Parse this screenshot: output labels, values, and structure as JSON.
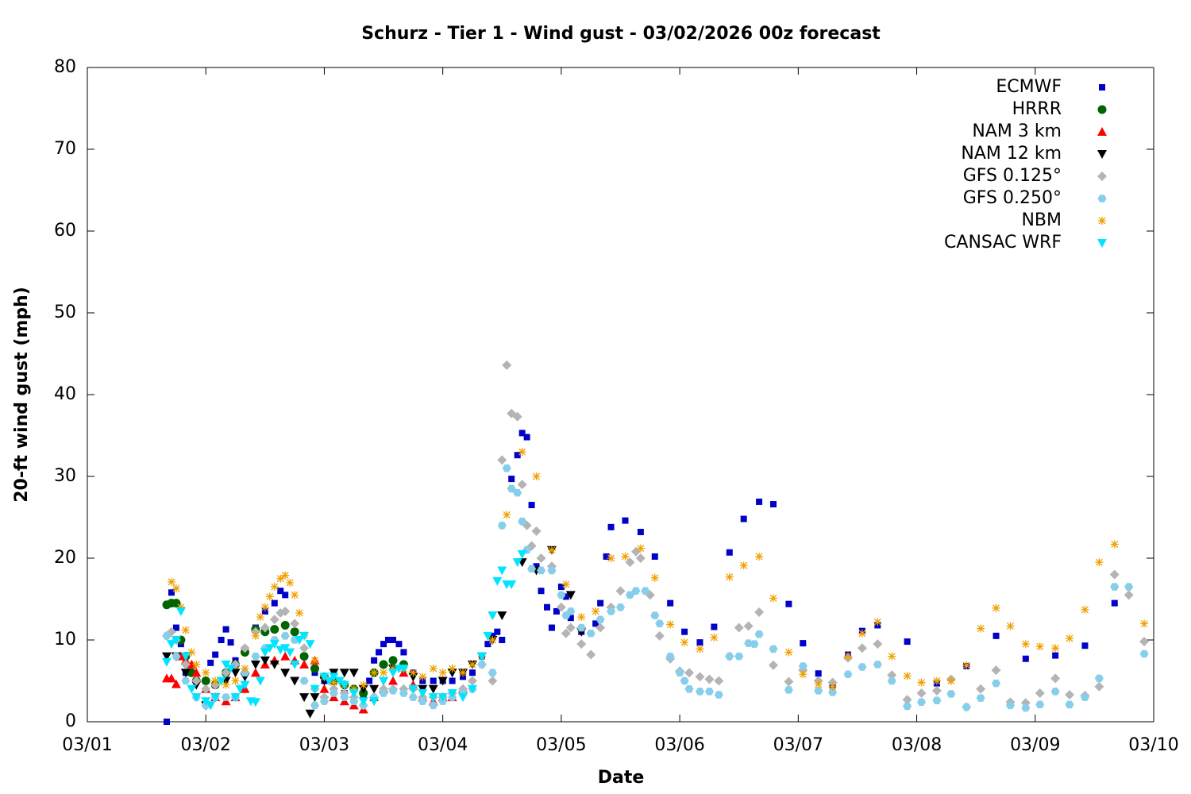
{
  "chart_data": {
    "type": "scatter",
    "title": "Schurz - Tier 1 - Wind gust - 03/02/2026 00z forecast",
    "xlabel": "Date",
    "ylabel": "20-ft wind gust (mph)",
    "xlim": [
      1,
      10
    ],
    "ylim": [
      0,
      80
    ],
    "xticks": [
      {
        "value": 1,
        "label": "03/01"
      },
      {
        "value": 2,
        "label": "03/02"
      },
      {
        "value": 3,
        "label": "03/03"
      },
      {
        "value": 4,
        "label": "03/04"
      },
      {
        "value": 5,
        "label": "03/05"
      },
      {
        "value": 6,
        "label": "03/06"
      },
      {
        "value": 7,
        "label": "03/07"
      },
      {
        "value": 8,
        "label": "03/08"
      },
      {
        "value": 9,
        "label": "03/09"
      },
      {
        "value": 10,
        "label": "03/10"
      }
    ],
    "yticks": [
      0,
      10,
      20,
      30,
      40,
      50,
      60,
      70,
      80
    ],
    "legend": "top-right",
    "series": [
      {
        "name": "ECMWF",
        "color": "#0000c8",
        "marker": "square",
        "x": [
          1.67,
          1.71,
          1.75,
          1.79,
          1.83,
          1.92,
          2.04,
          2.08,
          2.13,
          2.17,
          2.21,
          2.25,
          2.33,
          2.42,
          2.5,
          2.58,
          2.63,
          2.67,
          2.75,
          2.83,
          2.92,
          3.0,
          3.17,
          3.33,
          3.38,
          3.42,
          3.46,
          3.5,
          3.54,
          3.58,
          3.63,
          3.67,
          3.75,
          3.83,
          3.92,
          4.0,
          4.08,
          4.17,
          4.25,
          4.33,
          4.38,
          4.42,
          4.46,
          4.5,
          4.58,
          4.63,
          4.67,
          4.71,
          4.75,
          4.79,
          4.83,
          4.88,
          4.92,
          4.96,
          5.0,
          5.04,
          5.08,
          5.17,
          5.29,
          5.33,
          5.38,
          5.42,
          5.54,
          5.67,
          5.79,
          5.92,
          6.04,
          6.17,
          6.29,
          6.42,
          6.54,
          6.67,
          6.79,
          6.92,
          7.04,
          7.17,
          7.29,
          7.42,
          7.54,
          7.67,
          7.92,
          8.17,
          8.42,
          8.67,
          8.92,
          9.17,
          9.42,
          9.67
        ],
        "values": [
          0,
          15.8,
          11.5,
          9.5,
          6,
          5,
          7.2,
          8.2,
          10,
          11.3,
          9.7,
          7.5,
          8.5,
          11.5,
          13.5,
          14.5,
          16,
          15.5,
          11,
          8,
          6,
          5,
          3.5,
          3,
          5,
          7.5,
          8.5,
          9.5,
          10,
          10,
          9.5,
          8.5,
          6,
          5,
          5,
          5,
          5,
          5.5,
          6,
          8,
          9.5,
          10.5,
          11,
          10,
          29.7,
          32.6,
          35.3,
          34.8,
          26.5,
          19,
          16,
          14,
          11.5,
          13.5,
          16.5,
          15.3,
          12.7,
          11,
          12,
          14.5,
          20.2,
          23.8,
          24.6,
          23.2,
          20.2,
          14.5,
          11,
          9.7,
          11.6,
          20.7,
          24.8,
          26.9,
          26.6,
          14.4,
          9.6,
          5.9,
          4.5,
          8.2,
          11.1,
          11.8,
          9.8,
          4.7,
          6.8,
          10.5,
          7.7,
          8.1,
          9.3,
          14.5
        ]
      },
      {
        "name": "HRRR",
        "color": "#006400",
        "marker": "circle",
        "x": [
          1.67,
          1.71,
          1.75,
          1.79,
          1.83,
          1.88,
          1.92,
          2.0,
          2.08,
          2.17,
          2.25,
          2.33,
          2.42,
          2.5,
          2.58,
          2.67,
          2.75,
          2.83,
          2.92,
          3.0,
          3.08,
          3.17,
          3.25,
          3.33,
          3.42,
          3.5,
          3.58,
          3.67
        ],
        "values": [
          14.3,
          14.5,
          14.5,
          10,
          8,
          6,
          5,
          5,
          4.5,
          6,
          7,
          8.5,
          11.3,
          11,
          11.3,
          11.8,
          11,
          8,
          6.5,
          5.5,
          5,
          4.5,
          4,
          3.5,
          6,
          7,
          7.5,
          7
        ]
      },
      {
        "name": "NAM 3 km",
        "color": "#ff0000",
        "marker": "triangle-up",
        "x": [
          1.67,
          1.71,
          1.75,
          1.79,
          1.83,
          1.88,
          1.92,
          2.0,
          2.08,
          2.17,
          2.25,
          2.33,
          2.42,
          2.5,
          2.58,
          2.67,
          2.75,
          2.83,
          2.92,
          3.0,
          3.08,
          3.17,
          3.25,
          3.33,
          3.42,
          3.5,
          3.58,
          3.67,
          3.75,
          3.83,
          3.92,
          4.0,
          4.08,
          4.17
        ],
        "values": [
          5.3,
          5.3,
          4.6,
          8,
          7.5,
          7,
          6,
          4,
          3,
          2.5,
          3,
          4,
          6,
          7,
          7.5,
          8,
          7.5,
          7,
          7.5,
          4,
          3,
          2.5,
          2,
          1.5,
          3,
          4,
          5,
          6,
          4.5,
          3,
          2.5,
          3,
          3,
          4
        ]
      },
      {
        "name": "NAM 12 km",
        "color": "#000000",
        "marker": "triangle-down",
        "x": [
          1.67,
          1.75,
          1.83,
          1.92,
          2.0,
          2.08,
          2.17,
          2.25,
          2.33,
          2.42,
          2.5,
          2.58,
          2.67,
          2.75,
          2.83,
          2.88,
          2.92,
          3.0,
          3.08,
          3.17,
          3.25,
          3.33,
          3.42,
          3.5,
          3.58,
          3.67,
          3.75,
          3.83,
          3.92,
          4.0,
          4.08,
          4.17,
          4.25,
          4.33,
          4.42,
          4.5,
          4.67,
          4.79,
          4.92,
          5.08,
          5.17
        ],
        "values": [
          8,
          8,
          6,
          4.5,
          2,
          3,
          5,
          6,
          5.5,
          7,
          7.5,
          7,
          6,
          5,
          3,
          1,
          3,
          5,
          6,
          6,
          6,
          4,
          4,
          5,
          6.5,
          6.5,
          5.5,
          4,
          4,
          5,
          6,
          6,
          7,
          8,
          10,
          13,
          19.5,
          18.5,
          21,
          15.5,
          11
        ]
      },
      {
        "name": "GFS 0.125°",
        "color": "#b4b4b4",
        "marker": "diamond",
        "x": [
          1.67,
          1.71,
          1.75,
          1.83,
          1.92,
          2.0,
          2.08,
          2.17,
          2.25,
          2.33,
          2.42,
          2.5,
          2.58,
          2.63,
          2.67,
          2.75,
          2.83,
          2.92,
          3.0,
          3.08,
          3.17,
          3.25,
          3.33,
          3.42,
          3.5,
          3.58,
          3.67,
          3.75,
          3.83,
          3.92,
          4.0,
          4.08,
          4.17,
          4.25,
          4.33,
          4.42,
          4.5,
          4.54,
          4.58,
          4.63,
          4.67,
          4.71,
          4.75,
          4.79,
          4.83,
          4.92,
          5.0,
          5.04,
          5.08,
          5.17,
          5.25,
          5.33,
          5.42,
          5.5,
          5.58,
          5.63,
          5.67,
          5.75,
          5.83,
          5.92,
          6.0,
          6.08,
          6.17,
          6.25,
          6.33,
          6.42,
          6.5,
          6.58,
          6.67,
          6.79,
          6.92,
          7.04,
          7.17,
          7.29,
          7.42,
          7.54,
          7.67,
          7.79,
          7.92,
          8.04,
          8.17,
          8.29,
          8.42,
          8.54,
          8.67,
          8.79,
          8.92,
          9.04,
          9.17,
          9.29,
          9.42,
          9.54,
          9.67,
          9.79,
          9.92
        ],
        "values": [
          10.5,
          11,
          10,
          7,
          5,
          4,
          4.5,
          6,
          7,
          9,
          11,
          11.5,
          12.5,
          13.3,
          13.5,
          12,
          9,
          4,
          3,
          4,
          3.5,
          3,
          2,
          3,
          4,
          4,
          4,
          4,
          3,
          3,
          3,
          3.5,
          4,
          5,
          7,
          5,
          32,
          43.6,
          37.7,
          37.3,
          29,
          24,
          21.5,
          23.3,
          20,
          19,
          14,
          10.8,
          11.5,
          9.5,
          8.2,
          11.5,
          14,
          16,
          19.5,
          20.8,
          20,
          15.5,
          10.5,
          7.7,
          6.2,
          6,
          5.5,
          5.2,
          5,
          8,
          11.5,
          11.7,
          13.4,
          6.9,
          4.9,
          6.3,
          5,
          4.8,
          7.8,
          9,
          9.5,
          5.7,
          2.7,
          3.5,
          3.8,
          5.2,
          1.8,
          4,
          6.3,
          2.4,
          2.3,
          3.5,
          5.3,
          3.3,
          3.2,
          4.3,
          18,
          15.5,
          9.8
        ]
      },
      {
        "name": "GFS 0.250°",
        "color": "#87ceeb",
        "marker": "hexagon",
        "x": [
          1.67,
          1.75,
          1.83,
          1.92,
          2.0,
          2.08,
          2.17,
          2.25,
          2.33,
          2.42,
          2.5,
          2.58,
          2.67,
          2.75,
          2.83,
          2.92,
          3.0,
          3.08,
          3.17,
          3.25,
          3.33,
          3.42,
          3.5,
          3.58,
          3.67,
          3.75,
          3.83,
          3.92,
          4.0,
          4.08,
          4.17,
          4.25,
          4.33,
          4.42,
          4.5,
          4.54,
          4.58,
          4.63,
          4.67,
          4.71,
          4.75,
          4.83,
          4.92,
          5.0,
          5.04,
          5.08,
          5.17,
          5.25,
          5.33,
          5.42,
          5.5,
          5.58,
          5.63,
          5.71,
          5.79,
          5.83,
          5.92,
          6.0,
          6.04,
          6.08,
          6.17,
          6.25,
          6.33,
          6.42,
          6.5,
          6.58,
          6.63,
          6.67,
          6.79,
          6.92,
          7.04,
          7.17,
          7.29,
          7.42,
          7.54,
          7.67,
          7.79,
          7.92,
          8.04,
          8.17,
          8.29,
          8.42,
          8.54,
          8.67,
          8.79,
          8.92,
          9.04,
          9.17,
          9.29,
          9.42,
          9.54,
          9.67,
          9.79,
          9.92
        ],
        "values": [
          10.5,
          8,
          5,
          3,
          2,
          3,
          3,
          3,
          6,
          8,
          9,
          10,
          10.5,
          10,
          5,
          2,
          2.5,
          3.5,
          3,
          2.5,
          2,
          3,
          3.5,
          3.8,
          3.5,
          3,
          2.5,
          2,
          2.5,
          3,
          3.5,
          4,
          7,
          6,
          24,
          31,
          28.5,
          28,
          24.5,
          21,
          18.7,
          18.5,
          18.5,
          15.5,
          13,
          13.5,
          11.5,
          10.8,
          12.5,
          13.5,
          14,
          15.5,
          16,
          16,
          13,
          12,
          8,
          6,
          5,
          4,
          3.7,
          3.7,
          3.3,
          8,
          8,
          9.6,
          9.5,
          10.7,
          8.9,
          3.9,
          6.8,
          3.8,
          3.6,
          5.8,
          6.7,
          7,
          5,
          1.9,
          2.4,
          2.6,
          3.4,
          1.8,
          2.9,
          4.7,
          2,
          1.7,
          2.1,
          3.7,
          2.1,
          3,
          5.3,
          16.5,
          16.5,
          8.3
        ]
      },
      {
        "name": "NBM",
        "color": "#f0a000",
        "marker": "asterisk",
        "x": [
          1.71,
          1.75,
          1.79,
          1.83,
          1.88,
          1.92,
          2.0,
          2.08,
          2.17,
          2.25,
          2.33,
          2.42,
          2.46,
          2.5,
          2.54,
          2.58,
          2.63,
          2.67,
          2.71,
          2.75,
          2.79,
          2.83,
          2.92,
          3.0,
          3.08,
          3.17,
          3.25,
          3.33,
          3.42,
          3.5,
          3.58,
          3.67,
          3.75,
          3.83,
          3.92,
          4.0,
          4.08,
          4.17,
          4.25,
          4.33,
          4.42,
          4.54,
          4.67,
          4.79,
          4.92,
          5.04,
          5.17,
          5.29,
          5.42,
          5.54,
          5.67,
          5.79,
          5.92,
          6.04,
          6.17,
          6.29,
          6.42,
          6.54,
          6.67,
          6.79,
          6.92,
          7.04,
          7.17,
          7.29,
          7.42,
          7.54,
          7.67,
          7.79,
          7.92,
          8.04,
          8.17,
          8.29,
          8.42,
          8.54,
          8.67,
          8.79,
          8.92,
          9.04,
          9.17,
          9.29,
          9.42,
          9.54,
          9.67,
          9.92
        ],
        "values": [
          17.1,
          16.3,
          14,
          11.2,
          8.5,
          7,
          6,
          5,
          4.5,
          5,
          6.5,
          10.5,
          12.8,
          14,
          15.3,
          16.5,
          17.5,
          17.9,
          17,
          15.5,
          13.3,
          10.5,
          7.5,
          5.5,
          4.8,
          4.5,
          4,
          4.5,
          6,
          6,
          6.5,
          6.5,
          6,
          5.5,
          6.5,
          6,
          6.5,
          6,
          7,
          8,
          10,
          25.3,
          33,
          30,
          21,
          16.8,
          12.8,
          13.5,
          20,
          20.2,
          21.2,
          17.6,
          11.9,
          9.7,
          8.9,
          10.3,
          17.7,
          19.1,
          20.2,
          15.1,
          8.5,
          5.8,
          4.6,
          4.3,
          8,
          10.8,
          12.2,
          8,
          5.6,
          4.8,
          5,
          5,
          6.9,
          11.4,
          13.9,
          11.7,
          9.5,
          9.2,
          9,
          10.2,
          13.7,
          19.5,
          21.7,
          12
        ]
      },
      {
        "name": "CANSAC WRF",
        "color": "#00e5ff",
        "marker": "triangle-down",
        "x": [
          1.67,
          1.71,
          1.75,
          1.79,
          1.83,
          1.88,
          1.92,
          2.0,
          2.04,
          2.08,
          2.13,
          2.17,
          2.21,
          2.25,
          2.29,
          2.33,
          2.38,
          2.42,
          2.46,
          2.5,
          2.54,
          2.58,
          2.63,
          2.67,
          2.71,
          2.75,
          2.79,
          2.83,
          2.88,
          2.92,
          3.0,
          3.04,
          3.08,
          3.13,
          3.17,
          3.25,
          3.33,
          3.42,
          3.5,
          3.58,
          3.63,
          3.67,
          3.75,
          3.83,
          3.92,
          4.0,
          4.08,
          4.17,
          4.25,
          4.33,
          4.38,
          4.42,
          4.46,
          4.5,
          4.54,
          4.58,
          4.63,
          4.67
        ],
        "values": [
          7.3,
          9.5,
          10,
          13.5,
          8,
          4,
          3,
          2.5,
          2,
          3,
          5,
          7,
          6.5,
          3,
          4,
          4.5,
          2.5,
          2.4,
          5,
          8.5,
          9,
          9.5,
          8.8,
          9,
          8.5,
          7,
          10,
          10.5,
          9.5,
          4,
          5.5,
          5,
          5.5,
          5,
          4.5,
          3.5,
          2.5,
          2.5,
          5,
          6,
          6.5,
          6.5,
          4,
          3.5,
          3,
          3,
          3.5,
          3,
          4,
          8,
          10.5,
          13,
          17.2,
          18.5,
          16.8,
          16.8,
          19.5,
          20.5
        ]
      }
    ]
  }
}
